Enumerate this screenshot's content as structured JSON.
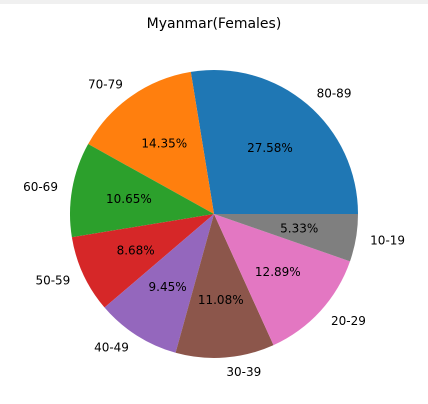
{
  "chart_data": {
    "type": "pie",
    "title": "Myanmar(Females)",
    "start_angle_deg": 0,
    "direction": "counterclockwise",
    "slices": [
      {
        "label": "80-89",
        "value": 27.58,
        "pct_label": "27.58%",
        "color": "#1f77b4"
      },
      {
        "label": "70-79",
        "value": 14.35,
        "pct_label": "14.35%",
        "color": "#ff7f0e"
      },
      {
        "label": "60-69",
        "value": 10.65,
        "pct_label": "10.65%",
        "color": "#2ca02c"
      },
      {
        "label": "50-59",
        "value": 8.68,
        "pct_label": "8.68%",
        "color": "#d62728"
      },
      {
        "label": "40-49",
        "value": 9.45,
        "pct_label": "9.45%",
        "color": "#9467bd"
      },
      {
        "label": "30-39",
        "value": 11.08,
        "pct_label": "11.08%",
        "color": "#8c564b"
      },
      {
        "label": "20-29",
        "value": 12.89,
        "pct_label": "12.89%",
        "color": "#e377c2"
      },
      {
        "label": "10-19",
        "value": 5.33,
        "pct_label": "5.33%",
        "color": "#7f7f7f"
      }
    ]
  }
}
